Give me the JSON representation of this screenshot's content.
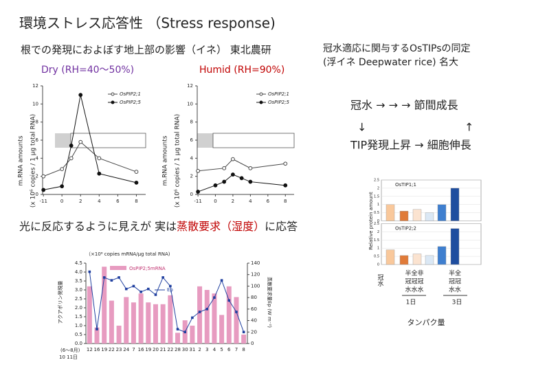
{
  "title": "環境ストレス応答性 （Stress response)",
  "subtitle": "根での発現におよぼす地上部の影響（イネ） 東北農研",
  "heading_right": [
    "冠水適応に関与するOsTIPsの同定",
    "(浮イネ Deepwater rice) 名大"
  ],
  "flow": [
    "冠水 → → → 節間成長",
    "↓",
    "↑",
    "TIP発現上昇 → 細胞伸長"
  ],
  "finding": [
    "光に反応するように見えが 実は",
    "蒸散要求（湿度）",
    "に応答"
  ],
  "chart_data": [
    {
      "type": "line",
      "title": "Dry (RH=40～50%)",
      "title_color": "#7030a0",
      "ylabel": [
        "m.RNA amounts",
        "(x 10⁶ copies / 1 μg total RNA)"
      ],
      "xlim": [
        -12,
        9
      ],
      "xticks": [
        -11,
        0,
        2,
        4,
        6,
        8
      ],
      "ylim": [
        0,
        12
      ],
      "yticks": [
        0,
        2,
        4,
        6,
        8,
        10,
        12
      ],
      "legend": "upper right",
      "series": [
        {
          "name": "OsPIP2;1",
          "color": "#444444",
          "marker": "open",
          "x": [
            -11,
            0,
            1,
            2,
            4,
            8
          ],
          "values": [
            2.0,
            2.8,
            4.0,
            5.8,
            4.0,
            2.5
          ]
        },
        {
          "name": "OsPIP2;5",
          "color": "#111111",
          "marker": "filled",
          "x": [
            -11,
            0,
            1,
            2,
            4,
            8
          ],
          "values": [
            0.5,
            0.9,
            5.4,
            11.0,
            2.3,
            1.3
          ]
        }
      ]
    },
    {
      "type": "line",
      "title": "Humid (RH=90%)",
      "title_color": "#c00000",
      "ylabel": [
        "m.RNA amounts",
        "(x 10⁶ copies / 1 μg total RNA)"
      ],
      "xlim": [
        -12,
        9
      ],
      "xticks": [
        -11,
        0,
        2,
        4,
        6,
        8
      ],
      "ylim": [
        0,
        12
      ],
      "yticks": [
        0,
        2,
        4,
        6,
        8,
        10,
        12
      ],
      "legend": "upper right",
      "series": [
        {
          "name": "OsPIP2;1",
          "color": "#444444",
          "marker": "open",
          "x": [
            -11,
            1,
            2,
            4,
            8
          ],
          "values": [
            2.6,
            2.9,
            3.9,
            2.9,
            3.4
          ]
        },
        {
          "name": "OsPIP2;5",
          "color": "#111111",
          "marker": "filled",
          "x": [
            -11,
            0,
            1,
            2,
            3,
            4,
            8
          ],
          "values": [
            0.3,
            1.0,
            1.4,
            2.2,
            1.8,
            1.4,
            1.0
          ]
        }
      ]
    },
    {
      "type": "bar",
      "ylabel": "Relative protein amount",
      "ylim": [
        0,
        2.5
      ],
      "yticks": [
        0,
        {
          "value": 0.5,
          "label": "0.5"
        },
        1,
        {
          "value": 1.5,
          "label": "1.5"
        },
        2,
        {
          "value": 2.5,
          "label": "2.5"
        }
      ],
      "colors": [
        "#f9c89b",
        "#e07b39",
        "#fbe3d0",
        "#dbe8f5",
        "#3f7fcf",
        "#1f4e9f"
      ],
      "panels": [
        {
          "title": "OsTIP1;1",
          "values": [
            1.0,
            0.6,
            0.7,
            0.5,
            1.0,
            2.0
          ]
        },
        {
          "title": "OsTIP2;2",
          "values": [
            0.9,
            0.55,
            0.65,
            0.55,
            1.1,
            2.2
          ]
        }
      ],
      "xlabels": [
        "冠水",
        "半全非",
        "冠冠冠",
        "水水水",
        "半全",
        "冠冠",
        "水水",
        "1日",
        "3日"
      ],
      "xlabel": "タンパク量"
    },
    {
      "type": "combo",
      "title": "（×10⁶ copies mRNA/μg total RNA)",
      "ylabel": "アクアポリン発現量",
      "y2label": "蒸散要求量Ep (W m⁻²)",
      "xnote": [
        "(6〜8月)",
        "10 11日"
      ],
      "categories": [
        "12",
        "16",
        "19",
        "22",
        "23",
        "24",
        "7",
        "16",
        "19",
        "20",
        "21",
        "22",
        "28",
        "30",
        "31",
        "2",
        "3",
        "4",
        "5",
        "6",
        "7",
        "8"
      ],
      "ylim": [
        0,
        4.5
      ],
      "yticks": [
        {
          "value": 0,
          "label": "0.0"
        },
        {
          "value": 0.5,
          "label": "0.5"
        },
        {
          "value": 1,
          "label": "1.0"
        },
        {
          "value": 1.5,
          "label": "1.5"
        },
        {
          "value": 2,
          "label": "2.0"
        },
        {
          "value": 2.5,
          "label": "2.5"
        },
        {
          "value": 3,
          "label": "3.0"
        },
        {
          "value": 3.5,
          "label": "3.5"
        },
        {
          "value": 4,
          "label": "4.0"
        },
        {
          "value": 4.5,
          "label": "4.5"
        }
      ],
      "y2lim": [
        0,
        140
      ],
      "y2ticks": [
        0,
        20,
        40,
        60,
        80,
        100,
        120,
        140
      ],
      "series": [
        {
          "name": "OsPIP2;5mRNA",
          "color": "#e79bc0",
          "values": [
            3.2,
            0.9,
            4.3,
            2.4,
            1.0,
            2.6,
            2.3,
            2.8,
            2.3,
            2.2,
            2.2,
            2.7,
            0.6,
            1.3,
            1.0,
            3.2,
            3.0,
            2.8,
            1.6,
            3.2,
            2.6,
            0.5
          ]
        },
        {
          "name": "Ep",
          "color": "#1f3f9f",
          "axis": "y2",
          "values": [
            125,
            25,
            115,
            110,
            115,
            95,
            100,
            90,
            95,
            85,
            115,
            100,
            25,
            20,
            45,
            55,
            60,
            80,
            110,
            75,
            55,
            20
          ]
        }
      ]
    }
  ]
}
